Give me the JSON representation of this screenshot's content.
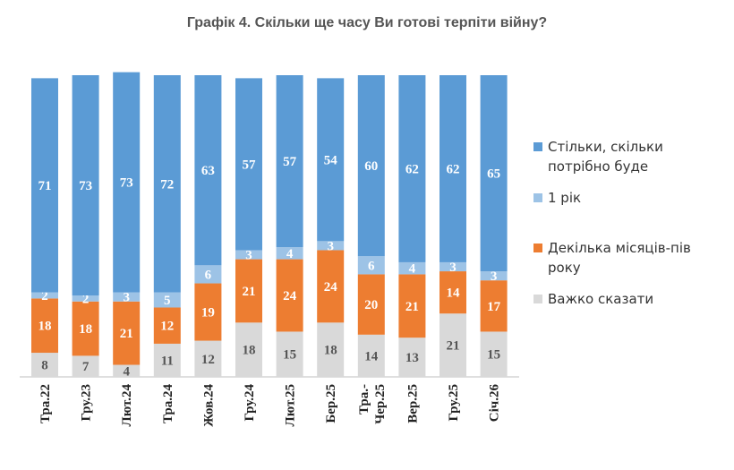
{
  "chart_data": {
    "type": "bar",
    "stacked": true,
    "title": "Графік 4. Скільки ще часу Ви готові терпіти війну?",
    "categories": [
      "Тра.22",
      "Гру.23",
      "Лют.24",
      "Тра.24",
      "Жов.24",
      "Гру.24",
      "Лют.25",
      "Бер.25",
      "Тра.-Чер.25",
      "Вер.25",
      "Гру.25",
      "Січ.26"
    ],
    "category_lines": [
      [
        "Тра.22"
      ],
      [
        "Гру.23"
      ],
      [
        "Лют.24"
      ],
      [
        "Тра.24"
      ],
      [
        "Жов.24"
      ],
      [
        "Гру.24"
      ],
      [
        "Лют.25"
      ],
      [
        "Бер.25"
      ],
      [
        "Тра.-",
        "Чер.25"
      ],
      [
        "Вер.25"
      ],
      [
        "Гру.25"
      ],
      [
        "Січ.26"
      ]
    ],
    "series": [
      {
        "name": "Важко сказати",
        "color": "#d9d9d9",
        "label_color": "#555555",
        "values": [
          8,
          7,
          4,
          11,
          12,
          18,
          15,
          18,
          14,
          13,
          21,
          15
        ]
      },
      {
        "name": "Декілька місяців-пів року",
        "color": "#ed7d31",
        "label_color": "#ffffff",
        "values": [
          18,
          18,
          21,
          12,
          19,
          21,
          24,
          24,
          20,
          21,
          14,
          17
        ]
      },
      {
        "name": "1 рік",
        "color": "#9dc3e6",
        "label_color": "#ffffff",
        "values": [
          2,
          2,
          3,
          5,
          6,
          3,
          4,
          3,
          6,
          4,
          3,
          3
        ]
      },
      {
        "name": "Стільки, скільки потрібно буде",
        "color": "#5b9bd5",
        "label_color": "#ffffff",
        "values": [
          71,
          73,
          73,
          72,
          63,
          57,
          57,
          54,
          60,
          62,
          62,
          65
        ]
      }
    ],
    "legend": {
      "position": "right",
      "items": [
        {
          "label": "Стільки, скільки потрібно буде",
          "color": "#5b9bd5"
        },
        {
          "label": "1 рік",
          "color": "#9dc3e6"
        },
        {
          "label": "Декілька місяців-пів року",
          "color": "#ed7d31"
        },
        {
          "label": "Важко сказати",
          "color": "#d9d9d9"
        }
      ]
    },
    "ylim": [
      0,
      100
    ],
    "xlabel": "",
    "ylabel": "",
    "grid": false
  }
}
